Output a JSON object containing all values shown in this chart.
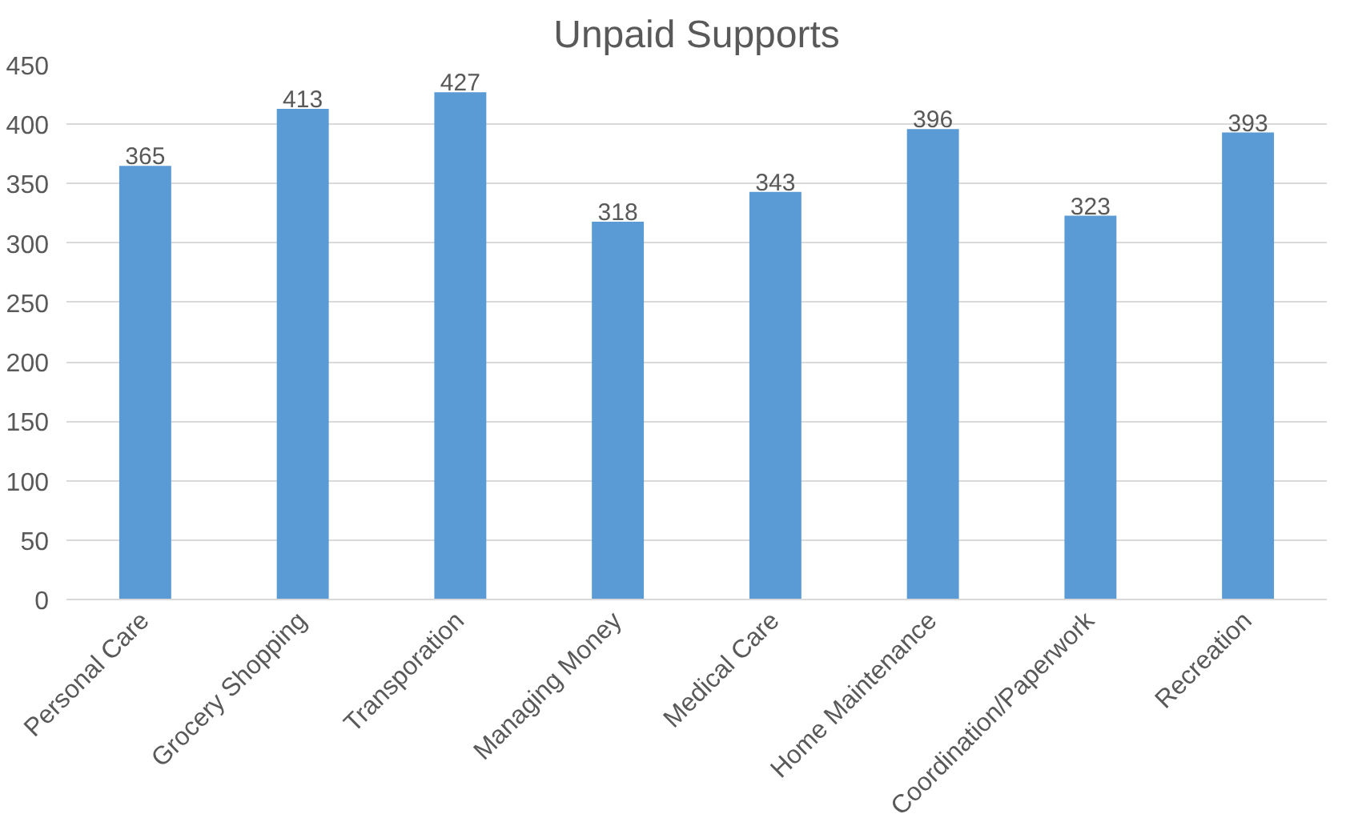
{
  "chart_data": {
    "type": "bar",
    "title": "Unpaid Supports",
    "categories": [
      "Personal Care",
      "Grocery Shopping",
      "Transporation",
      "Managing Money",
      "Medical Care",
      "Home Maintenance",
      "Coordination/Paperwork",
      "Recreation"
    ],
    "values": [
      365,
      413,
      427,
      318,
      343,
      396,
      323,
      393
    ],
    "color": "#5b9bd5",
    "ylim": [
      0,
      450
    ],
    "yticks": [
      0,
      50,
      100,
      150,
      200,
      250,
      300,
      350,
      400,
      450
    ],
    "grid": "y",
    "data_labels": true
  }
}
